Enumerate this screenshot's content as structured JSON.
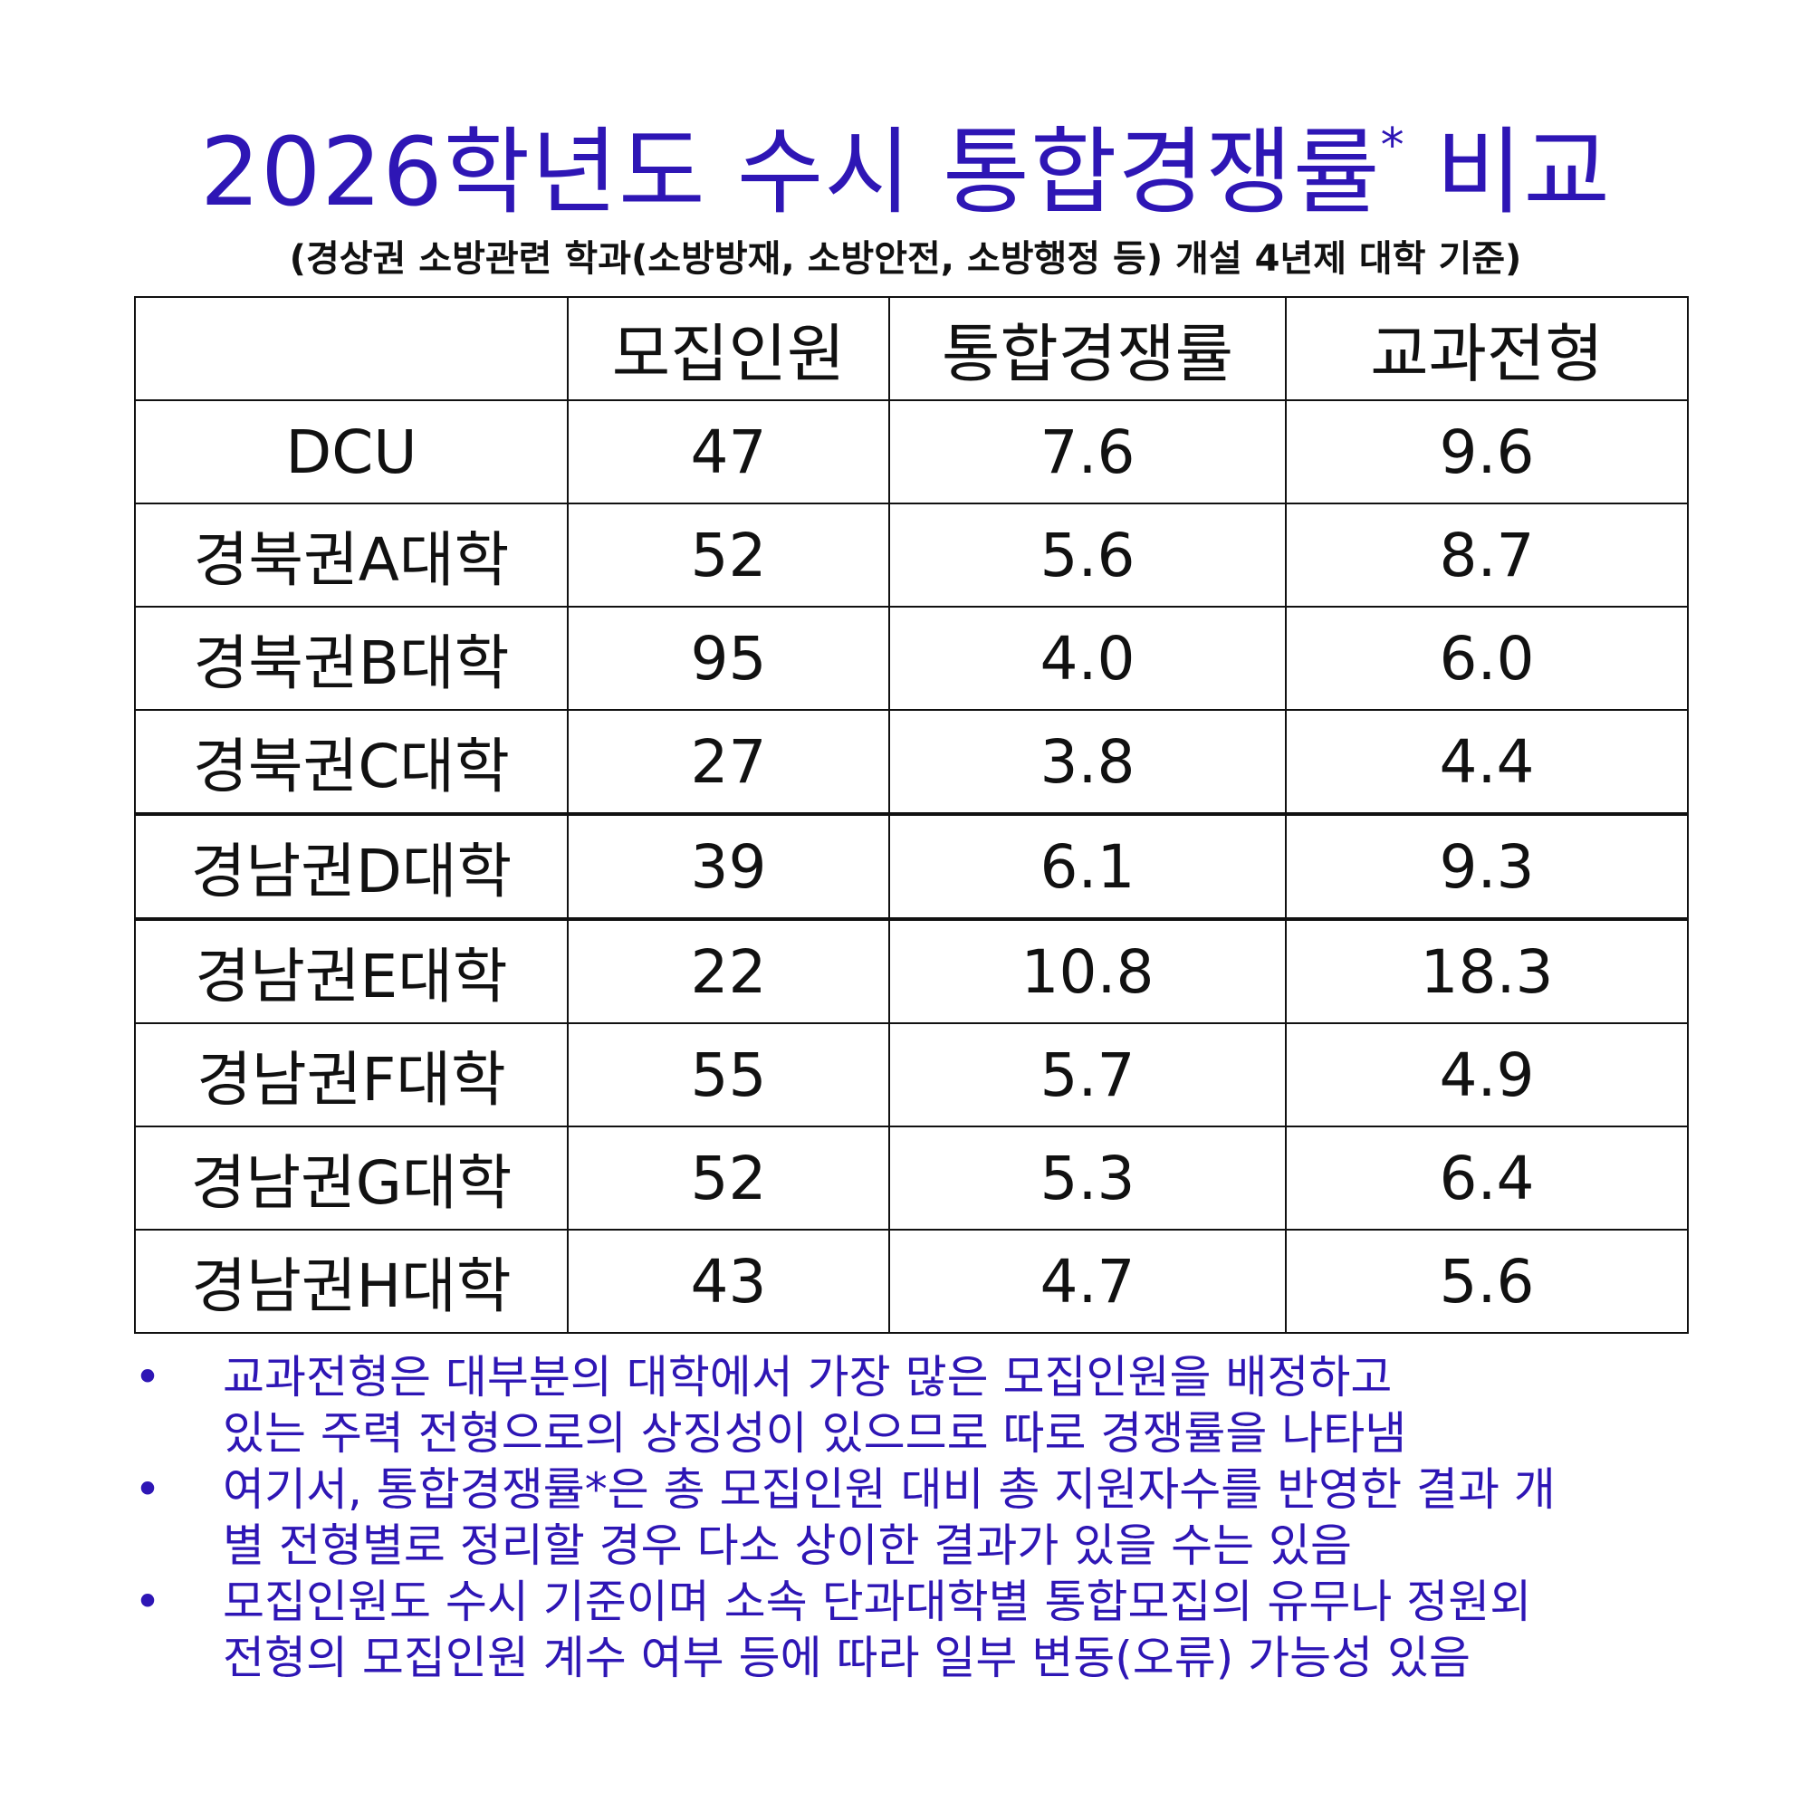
{
  "title": {
    "main": "2026학년도 수시 통합경쟁률",
    "mark": "*",
    "end": "비교"
  },
  "subtitle": "(경상권 소방관련 학과(소방방재, 소방안전, 소방행정 등) 개설 4년제 대학 기준)",
  "table": {
    "headers": [
      "",
      "모집인원",
      "통합경쟁률",
      "교과전형"
    ],
    "rows": [
      {
        "name": "DCU",
        "recruit": "47",
        "total": "7.6",
        "subject": "9.6"
      },
      {
        "name": "경북권A대학",
        "recruit": "52",
        "total": "5.6",
        "subject": "8.7"
      },
      {
        "name": "경북권B대학",
        "recruit": "95",
        "total": "4.0",
        "subject": "6.0"
      },
      {
        "name": "경북권C대학",
        "recruit": "27",
        "total": "3.8",
        "subject": "4.4"
      },
      {
        "name": "경남권D대학",
        "recruit": "39",
        "total": "6.1",
        "subject": "9.3"
      },
      {
        "name": "경남권E대학",
        "recruit": "22",
        "total": "10.8",
        "subject": "18.3"
      },
      {
        "name": "경남권F대학",
        "recruit": "55",
        "total": "5.7",
        "subject": "4.9"
      },
      {
        "name": "경남권G대학",
        "recruit": "52",
        "total": "5.3",
        "subject": "6.4"
      },
      {
        "name": "경남권H대학",
        "recruit": "43",
        "total": "4.7",
        "subject": "5.6"
      }
    ]
  },
  "notes": {
    "bullet": "•",
    "items": [
      {
        "lines": [
          "교과전형은 대부분의 대학에서 가장 많은 모집인원을 배정하고",
          "있는 주력 전형으로의 상징성이 있으므로 따로 경쟁률을 나타냄"
        ]
      },
      {
        "lines": [
          "여기서, 통합경쟁률*은 총 모집인원 대비 총 지원자수를 반영한 결과 개",
          "별 전형별로 정리할 경우 다소 상이한 결과가 있을 수는 있음"
        ]
      },
      {
        "lines": [
          "모집인원도 수시 기준이며 소속 단과대학별 통합모집의 유무나 정원외",
          "전형의 모집인원 계수 여부 등에 따라 일부 변동(오류) 가능성 있음"
        ]
      }
    ]
  },
  "colors": {
    "title": "#2e16b5",
    "notes": "#2e16b5",
    "text": "#111111",
    "border": "#111111"
  }
}
